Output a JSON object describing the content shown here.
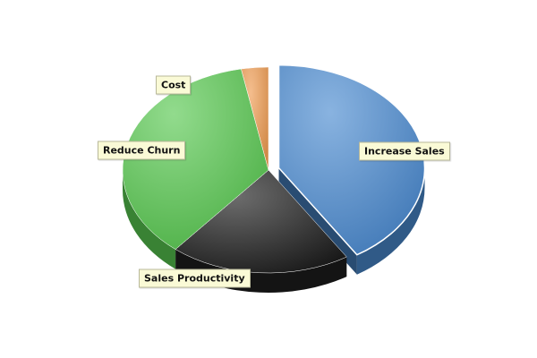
{
  "chart_data": {
    "type": "pie",
    "style": "3d-exploded",
    "slices": [
      {
        "label": "Increase Sales",
        "value": 41,
        "color": "#4a8ad0",
        "exploded": true
      },
      {
        "label": "Sales Productivity",
        "value": 20,
        "color": "#1e1e1e",
        "exploded": false
      },
      {
        "label": "Reduce Churn",
        "value": 36,
        "color": "#58c850",
        "exploded": false
      },
      {
        "label": "Cost",
        "value": 3,
        "color": "#ee9a50",
        "exploded": false
      }
    ]
  }
}
